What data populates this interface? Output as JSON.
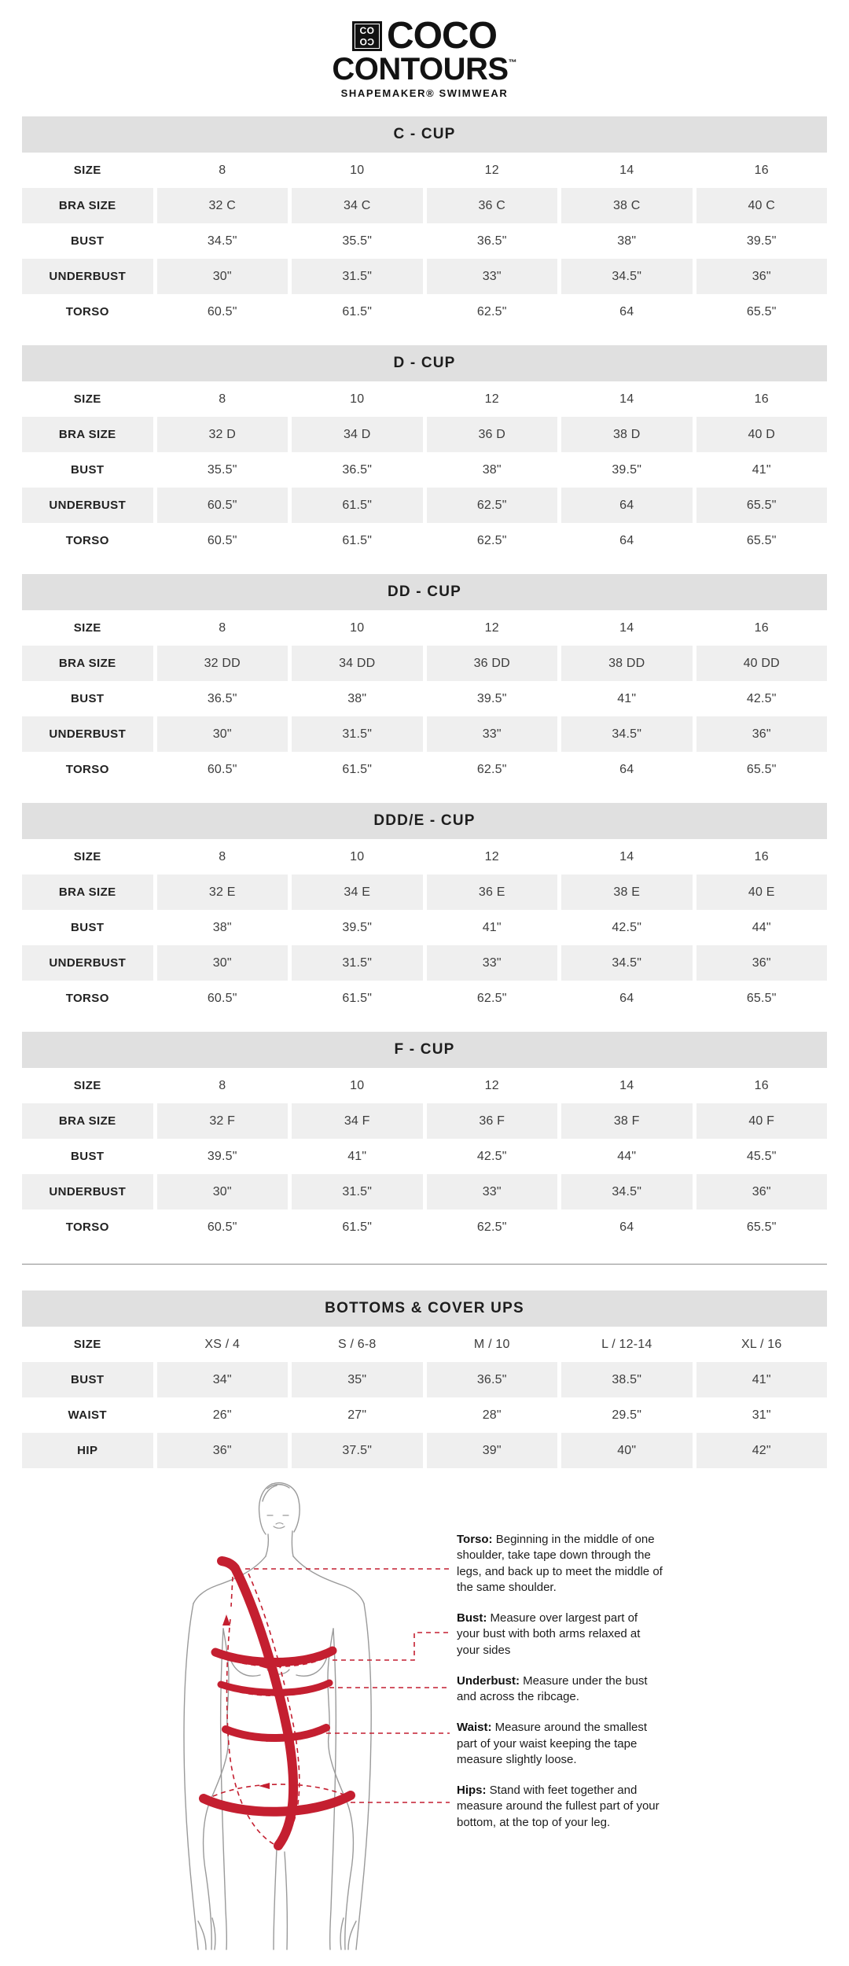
{
  "brand": {
    "icon_text_top": "CO",
    "icon_text_bottom": "CO",
    "name_line1": "COCO",
    "name_line2": "CONTOURS",
    "trademark": "™",
    "tagline": "SHAPEMAKER® SWIMWEAR"
  },
  "tables": [
    {
      "title": "C - CUP",
      "rows": [
        {
          "label": "SIZE",
          "values": [
            "8",
            "10",
            "12",
            "14",
            "16"
          ]
        },
        {
          "label": "BRA SIZE",
          "values": [
            "32 C",
            "34 C",
            "36 C",
            "38 C",
            "40 C"
          ]
        },
        {
          "label": "BUST",
          "values": [
            "34.5\"",
            "35.5\"",
            "36.5\"",
            "38\"",
            "39.5\""
          ]
        },
        {
          "label": "UNDERBUST",
          "values": [
            "30\"",
            "31.5\"",
            "33\"",
            "34.5\"",
            "36\""
          ]
        },
        {
          "label": "TORSO",
          "values": [
            "60.5\"",
            "61.5\"",
            "62.5\"",
            "64",
            "65.5\""
          ]
        }
      ]
    },
    {
      "title": "D - CUP",
      "rows": [
        {
          "label": "SIZE",
          "values": [
            "8",
            "10",
            "12",
            "14",
            "16"
          ]
        },
        {
          "label": "BRA SIZE",
          "values": [
            "32 D",
            "34 D",
            "36 D",
            "38 D",
            "40 D"
          ]
        },
        {
          "label": "BUST",
          "values": [
            "35.5\"",
            "36.5\"",
            "38\"",
            "39.5\"",
            "41\""
          ]
        },
        {
          "label": "UNDERBUST",
          "values": [
            "60.5\"",
            "61.5\"",
            "62.5\"",
            "64",
            "65.5\""
          ]
        },
        {
          "label": "TORSO",
          "values": [
            "60.5\"",
            "61.5\"",
            "62.5\"",
            "64",
            "65.5\""
          ]
        }
      ]
    },
    {
      "title": "DD - CUP",
      "rows": [
        {
          "label": "SIZE",
          "values": [
            "8",
            "10",
            "12",
            "14",
            "16"
          ]
        },
        {
          "label": "BRA SIZE",
          "values": [
            "32 DD",
            "34 DD",
            "36 DD",
            "38 DD",
            "40 DD"
          ]
        },
        {
          "label": "BUST",
          "values": [
            "36.5\"",
            "38\"",
            "39.5\"",
            "41\"",
            "42.5\""
          ]
        },
        {
          "label": "UNDERBUST",
          "values": [
            "30\"",
            "31.5\"",
            "33\"",
            "34.5\"",
            "36\""
          ]
        },
        {
          "label": "TORSO",
          "values": [
            "60.5\"",
            "61.5\"",
            "62.5\"",
            "64",
            "65.5\""
          ]
        }
      ]
    },
    {
      "title": "DDD/E - CUP",
      "rows": [
        {
          "label": "SIZE",
          "values": [
            "8",
            "10",
            "12",
            "14",
            "16"
          ]
        },
        {
          "label": "BRA SIZE",
          "values": [
            "32 E",
            "34 E",
            "36 E",
            "38 E",
            "40 E"
          ]
        },
        {
          "label": "BUST",
          "values": [
            "38\"",
            "39.5\"",
            "41\"",
            "42.5\"",
            "44\""
          ]
        },
        {
          "label": "UNDERBUST",
          "values": [
            "30\"",
            "31.5\"",
            "33\"",
            "34.5\"",
            "36\""
          ]
        },
        {
          "label": "TORSO",
          "values": [
            "60.5\"",
            "61.5\"",
            "62.5\"",
            "64",
            "65.5\""
          ]
        }
      ]
    },
    {
      "title": "F - CUP",
      "rows": [
        {
          "label": "SIZE",
          "values": [
            "8",
            "10",
            "12",
            "14",
            "16"
          ]
        },
        {
          "label": "BRA SIZE",
          "values": [
            "32 F",
            "34 F",
            "36 F",
            "38 F",
            "40 F"
          ]
        },
        {
          "label": "BUST",
          "values": [
            "39.5\"",
            "41\"",
            "42.5\"",
            "44\"",
            "45.5\""
          ]
        },
        {
          "label": "UNDERBUST",
          "values": [
            "30\"",
            "31.5\"",
            "33\"",
            "34.5\"",
            "36\""
          ]
        },
        {
          "label": "TORSO",
          "values": [
            "60.5\"",
            "61.5\"",
            "62.5\"",
            "64",
            "65.5\""
          ]
        }
      ]
    },
    {
      "title": "BOTTOMS & COVER UPS",
      "rows": [
        {
          "label": "SIZE",
          "values": [
            "XS / 4",
            "S / 6-8",
            "M / 10",
            "L / 12-14",
            "XL / 16"
          ]
        },
        {
          "label": "BUST",
          "values": [
            "34\"",
            "35\"",
            "36.5\"",
            "38.5\"",
            "41\""
          ]
        },
        {
          "label": "WAIST",
          "values": [
            "26\"",
            "27\"",
            "28\"",
            "29.5\"",
            "31\""
          ]
        },
        {
          "label": "HIP",
          "values": [
            "36\"",
            "37.5\"",
            "39\"",
            "40\"",
            "42\""
          ]
        }
      ]
    }
  ],
  "measure_guide": {
    "notes": [
      {
        "label": "Torso:",
        "text": " Beginning in the middle of one shoulder, take tape down through the legs, and back up to meet the middle of the same shoulder."
      },
      {
        "label": "Bust:",
        "text": " Measure over largest part of your bust with both arms relaxed at your sides"
      },
      {
        "label": "Underbust:",
        "text": " Measure under the bust and across the ribcage."
      },
      {
        "label": "Waist:",
        "text": " Measure around the smallest part of your waist keeping the tape measure slightly loose."
      },
      {
        "label": "Hips:",
        "text": " Stand with feet together and measure around the fullest part of your bottom, at the top of your leg."
      }
    ]
  },
  "colors": {
    "accent_red": "#c41f30",
    "table_header_gray": "#e0e0e0",
    "table_row_gray": "#efefef",
    "figure_line_gray": "#9a9a9a"
  }
}
